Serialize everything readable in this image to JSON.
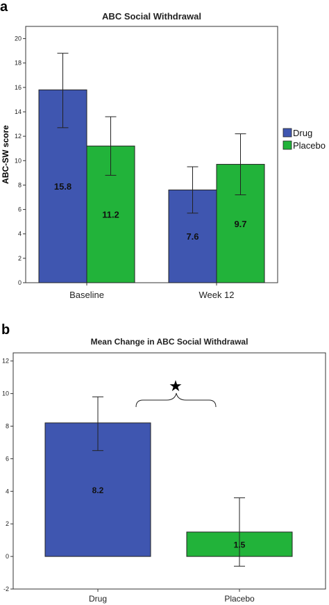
{
  "panel_a_letter": "a",
  "panel_b_letter": "b",
  "chart_data": [
    {
      "type": "bar",
      "title": "ABC Social Withdrawal",
      "ylabel": "ABC-SW score",
      "xlabel": "",
      "categories": [
        "Baseline",
        "Week 12"
      ],
      "ylim": [
        0,
        21
      ],
      "yticks": [
        0,
        2,
        4,
        6,
        8,
        10,
        12,
        14,
        16,
        18,
        20
      ],
      "series": [
        {
          "name": "Drug",
          "color": "#3f56b0",
          "values": [
            15.8,
            7.6
          ],
          "labels": [
            "15.8",
            "7.6"
          ],
          "err_low": [
            12.7,
            5.7
          ],
          "err_high": [
            18.8,
            9.5
          ]
        },
        {
          "name": "Placebo",
          "color": "#22b33a",
          "values": [
            11.2,
            9.7
          ],
          "labels": [
            "11.2",
            "9.7"
          ],
          "err_low": [
            8.8,
            7.2
          ],
          "err_high": [
            13.6,
            12.2
          ]
        }
      ],
      "legend": "right",
      "grid": false
    },
    {
      "type": "bar",
      "title": "Mean Change in ABC Social Withdrawal",
      "ylabel": "",
      "xlabel": "",
      "categories": [
        "Drug",
        "Placebo"
      ],
      "ylim": [
        -2,
        12.5
      ],
      "yticks": [
        -2,
        0,
        2,
        4,
        6,
        8,
        10,
        12
      ],
      "values": [
        8.2,
        1.5
      ],
      "labels": [
        "8.2",
        "1.5"
      ],
      "colors": [
        "#3f56b0",
        "#22b33a"
      ],
      "err_low": [
        6.5,
        -0.6
      ],
      "err_high": [
        9.8,
        3.6
      ],
      "annotation": "★",
      "grid": false
    }
  ]
}
